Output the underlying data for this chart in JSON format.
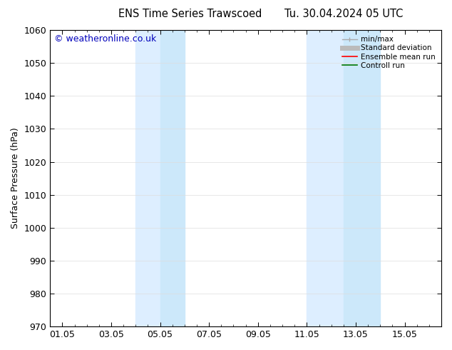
{
  "title_left": "ENS Time Series Trawscoed",
  "title_right": "Tu. 30.04.2024 05 UTC",
  "ylabel": "Surface Pressure (hPa)",
  "ylim": [
    970,
    1060
  ],
  "yticks": [
    970,
    980,
    990,
    1000,
    1010,
    1020,
    1030,
    1040,
    1050,
    1060
  ],
  "xtick_labels": [
    "01.05",
    "03.05",
    "05.05",
    "07.05",
    "09.05",
    "11.05",
    "13.05",
    "15.05"
  ],
  "xtick_positions": [
    0,
    2,
    4,
    6,
    8,
    10,
    12,
    14
  ],
  "xlim": [
    -0.5,
    15.5
  ],
  "shaded_bands": [
    {
      "x_start": 3.0,
      "x_end": 5.0
    },
    {
      "x_start": 10.0,
      "x_end": 13.0
    }
  ],
  "shade_color": "#ddeeff",
  "shade_color2": "#cce8fa",
  "watermark": "© weatheronline.co.uk",
  "watermark_color": "#0000bb",
  "legend_items": [
    {
      "label": "min/max",
      "color": "#aaaaaa",
      "linewidth": 1.0
    },
    {
      "label": "Standard deviation",
      "color": "#bbbbbb",
      "linewidth": 5
    },
    {
      "label": "Ensemble mean run",
      "color": "#ff0000",
      "linewidth": 1.2
    },
    {
      "label": "Controll run",
      "color": "#007700",
      "linewidth": 1.2
    }
  ],
  "background_color": "#ffffff",
  "grid_color": "#dddddd",
  "font_size": 9,
  "title_font_size": 10.5
}
